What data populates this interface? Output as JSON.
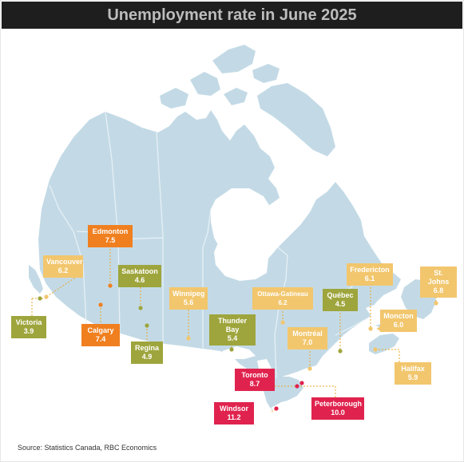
{
  "title": "Unemployment rate in June 2025",
  "source": "Source: Statistics Canada, RBC Economics",
  "colors": {
    "title_bg": "#1e1e1e",
    "title_text": "#bdbdbd",
    "land": "#c3dae6",
    "land_dark": "#b4cfdd",
    "border": "#e8f1f6",
    "orange": "#f07f1f",
    "yellow": "#f2c66d",
    "olive": "#9ea53c",
    "red": "#e0234e",
    "dot_line": "#e8a72a"
  },
  "cities": [
    {
      "name": "Edmonton",
      "value": "7.5",
      "color": "orange"
    },
    {
      "name": "Vancouver",
      "value": "6.2",
      "color": "yellow"
    },
    {
      "name": "Saskatoon",
      "value": "4.6",
      "color": "olive"
    },
    {
      "name": "Victoria",
      "value": "3.9",
      "color": "olive"
    },
    {
      "name": "Calgary",
      "value": "7.4",
      "color": "orange"
    },
    {
      "name": "Regina",
      "value": "4.9",
      "color": "olive"
    },
    {
      "name": "Winnipeg",
      "value": "5.6",
      "color": "yellow"
    },
    {
      "name": "Thunder Bay",
      "value": "5.4",
      "color": "olive"
    },
    {
      "name": "Ottawa-Gatineau",
      "value": "6.2",
      "color": "yellow"
    },
    {
      "name": "Montréal",
      "value": "7.0",
      "color": "yellow"
    },
    {
      "name": "Québec",
      "value": "4.5",
      "color": "olive"
    },
    {
      "name": "Fredericton",
      "value": "6.1",
      "color": "yellow"
    },
    {
      "name": "St. Johns",
      "value": "6.8",
      "color": "yellow"
    },
    {
      "name": "Moncton",
      "value": "6.0",
      "color": "yellow"
    },
    {
      "name": "Halifax",
      "value": "5.9",
      "color": "yellow"
    },
    {
      "name": "Toronto",
      "value": "8.7",
      "color": "red"
    },
    {
      "name": "Peterborough",
      "value": "10.0",
      "color": "red"
    },
    {
      "name": "Windsor",
      "value": "11.2",
      "color": "red"
    }
  ]
}
